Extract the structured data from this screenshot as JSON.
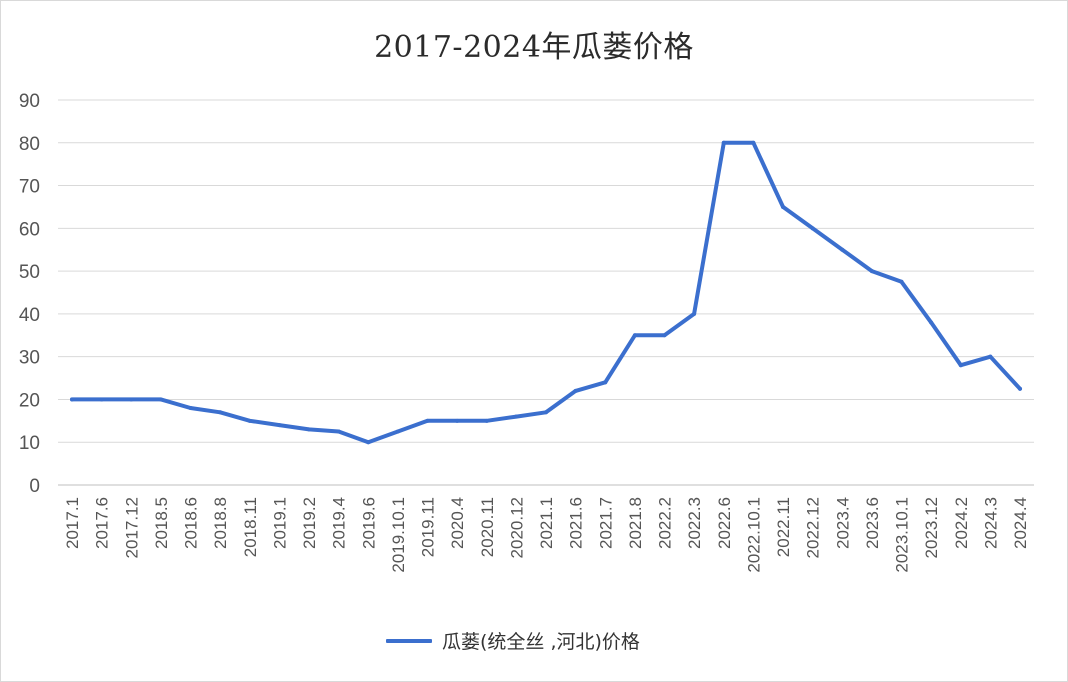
{
  "chart_data": {
    "type": "line",
    "title": "2017-2024年瓜蒌价格",
    "xlabel": "",
    "ylabel": "",
    "ylim": [
      0,
      90
    ],
    "yticks": [
      0,
      10,
      20,
      30,
      40,
      50,
      60,
      70,
      80,
      90
    ],
    "grid": true,
    "legend_position": "bottom",
    "categories": [
      "2017.1",
      "2017.6",
      "2017.12",
      "2018.5",
      "2018.6",
      "2018.8",
      "2018.11",
      "2019.1",
      "2019.2",
      "2019.4",
      "2019.6",
      "2019.10.1",
      "2019.11",
      "2020.4",
      "2020.11",
      "2020.12",
      "2021.1",
      "2021.6",
      "2021.7",
      "2021.8",
      "2022.2",
      "2022.3",
      "2022.6",
      "2022.10.1",
      "2022.11",
      "2022.12",
      "2023.4",
      "2023.6",
      "2023.10.1",
      "2023.12",
      "2024.2",
      "2024.3",
      "2024.4"
    ],
    "series": [
      {
        "name": "瓜蒌(统全丝 ,河北)价格",
        "color": "#3b6fce",
        "values": [
          20,
          20,
          20,
          20,
          18,
          17,
          15,
          14,
          13,
          12.5,
          10,
          12.5,
          15,
          15,
          15,
          16,
          17,
          22,
          24,
          35,
          35,
          40,
          80,
          80,
          65,
          60,
          55,
          50,
          47.5,
          38,
          28,
          30,
          22.5
        ]
      }
    ]
  }
}
